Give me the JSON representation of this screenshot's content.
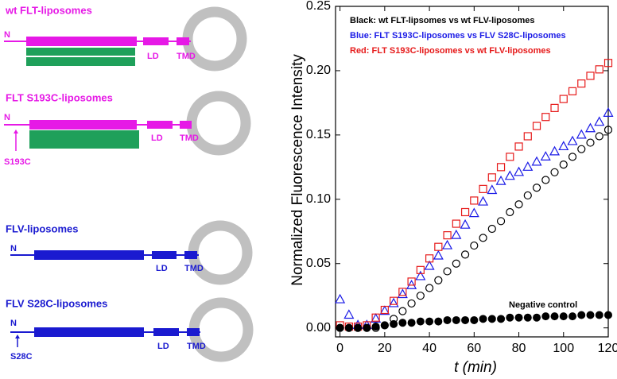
{
  "diagrams": [
    {
      "title": "wt FLT-liposomes",
      "n": "N",
      "ld": "LD",
      "tmd": "TMD",
      "color": "#e619e6"
    },
    {
      "title": "FLT S193C-liposomes",
      "n": "N",
      "ld": "LD",
      "tmd": "TMD",
      "mutation": "S193C",
      "color": "#e619e6"
    },
    {
      "title": "FLV-liposomes",
      "n": "N",
      "ld": "LD",
      "tmd": "TMD",
      "color": "#1a1ad0"
    },
    {
      "title": "FLV S28C-liposomes",
      "n": "N",
      "ld": "LD",
      "tmd": "TMD",
      "mutation": "S28C",
      "color": "#1a1ad0"
    }
  ],
  "chart_data": {
    "type": "scatter",
    "xlabel": "t (min)",
    "ylabel": "Normalized Fluorescence Intensity",
    "xlim": [
      -2,
      120
    ],
    "ylim": [
      -0.007,
      0.25
    ],
    "xticks": [
      0,
      20,
      40,
      60,
      80,
      100,
      120
    ],
    "yticks": [
      {
        "value": 0,
        "label": "0.00"
      },
      {
        "value": 0.05,
        "label": "0.05"
      },
      {
        "value": 0.1,
        "label": "0.10"
      },
      {
        "value": 0.15,
        "label": "0.15"
      },
      {
        "value": 0.2,
        "label": "0.20"
      },
      {
        "value": 0.25,
        "label": "0.25"
      }
    ],
    "x": [
      0,
      4,
      8,
      12,
      16,
      20,
      24,
      28,
      32,
      36,
      40,
      44,
      48,
      52,
      56,
      60,
      64,
      68,
      72,
      76,
      80,
      84,
      88,
      92,
      96,
      100,
      104,
      108,
      112,
      116,
      120
    ],
    "series": [
      {
        "name": "Black: wt FLT-lipsomes vs wt FLV-liposomes",
        "color": "#000000",
        "marker": "circle",
        "values": [
          0,
          0,
          0,
          0,
          0,
          0.002,
          0.007,
          0.013,
          0.019,
          0.025,
          0.031,
          0.037,
          0.044,
          0.05,
          0.057,
          0.064,
          0.07,
          0.077,
          0.083,
          0.09,
          0.096,
          0.103,
          0.109,
          0.115,
          0.121,
          0.127,
          0.133,
          0.139,
          0.144,
          0.149,
          0.154
        ]
      },
      {
        "name": "Blue: FLT S193C-liposomes vs FLV S28C-liposomes",
        "color": "#1a1ae6",
        "marker": "triangle",
        "values": [
          0.022,
          0.01,
          0.002,
          0.002,
          0.007,
          0.013,
          0.019,
          0.026,
          0.033,
          0.04,
          0.048,
          0.056,
          0.064,
          0.072,
          0.08,
          0.089,
          0.098,
          0.107,
          0.114,
          0.118,
          0.121,
          0.125,
          0.129,
          0.133,
          0.137,
          0.141,
          0.145,
          0.15,
          0.155,
          0.16,
          0.167
        ]
      },
      {
        "name": "Red: FLT S193C-liposomes vs wt FLV-liposomes",
        "color": "#e61a1a",
        "marker": "square",
        "values": [
          0.002,
          0.001,
          0.001,
          0.002,
          0.008,
          0.014,
          0.021,
          0.028,
          0.036,
          0.045,
          0.054,
          0.063,
          0.072,
          0.081,
          0.09,
          0.099,
          0.108,
          0.117,
          0.125,
          0.133,
          0.141,
          0.149,
          0.157,
          0.164,
          0.171,
          0.178,
          0.184,
          0.19,
          0.196,
          0.201,
          0.206
        ]
      },
      {
        "name": "Negative control",
        "color": "#000000",
        "marker": "dot",
        "values": [
          0,
          0,
          0,
          0,
          0.001,
          0.002,
          0.003,
          0.004,
          0.004,
          0.005,
          0.005,
          0.005,
          0.006,
          0.006,
          0.006,
          0.006,
          0.007,
          0.007,
          0.007,
          0.008,
          0.008,
          0.008,
          0.008,
          0.009,
          0.009,
          0.009,
          0.009,
          0.01,
          0.01,
          0.01,
          0.01
        ]
      }
    ]
  }
}
